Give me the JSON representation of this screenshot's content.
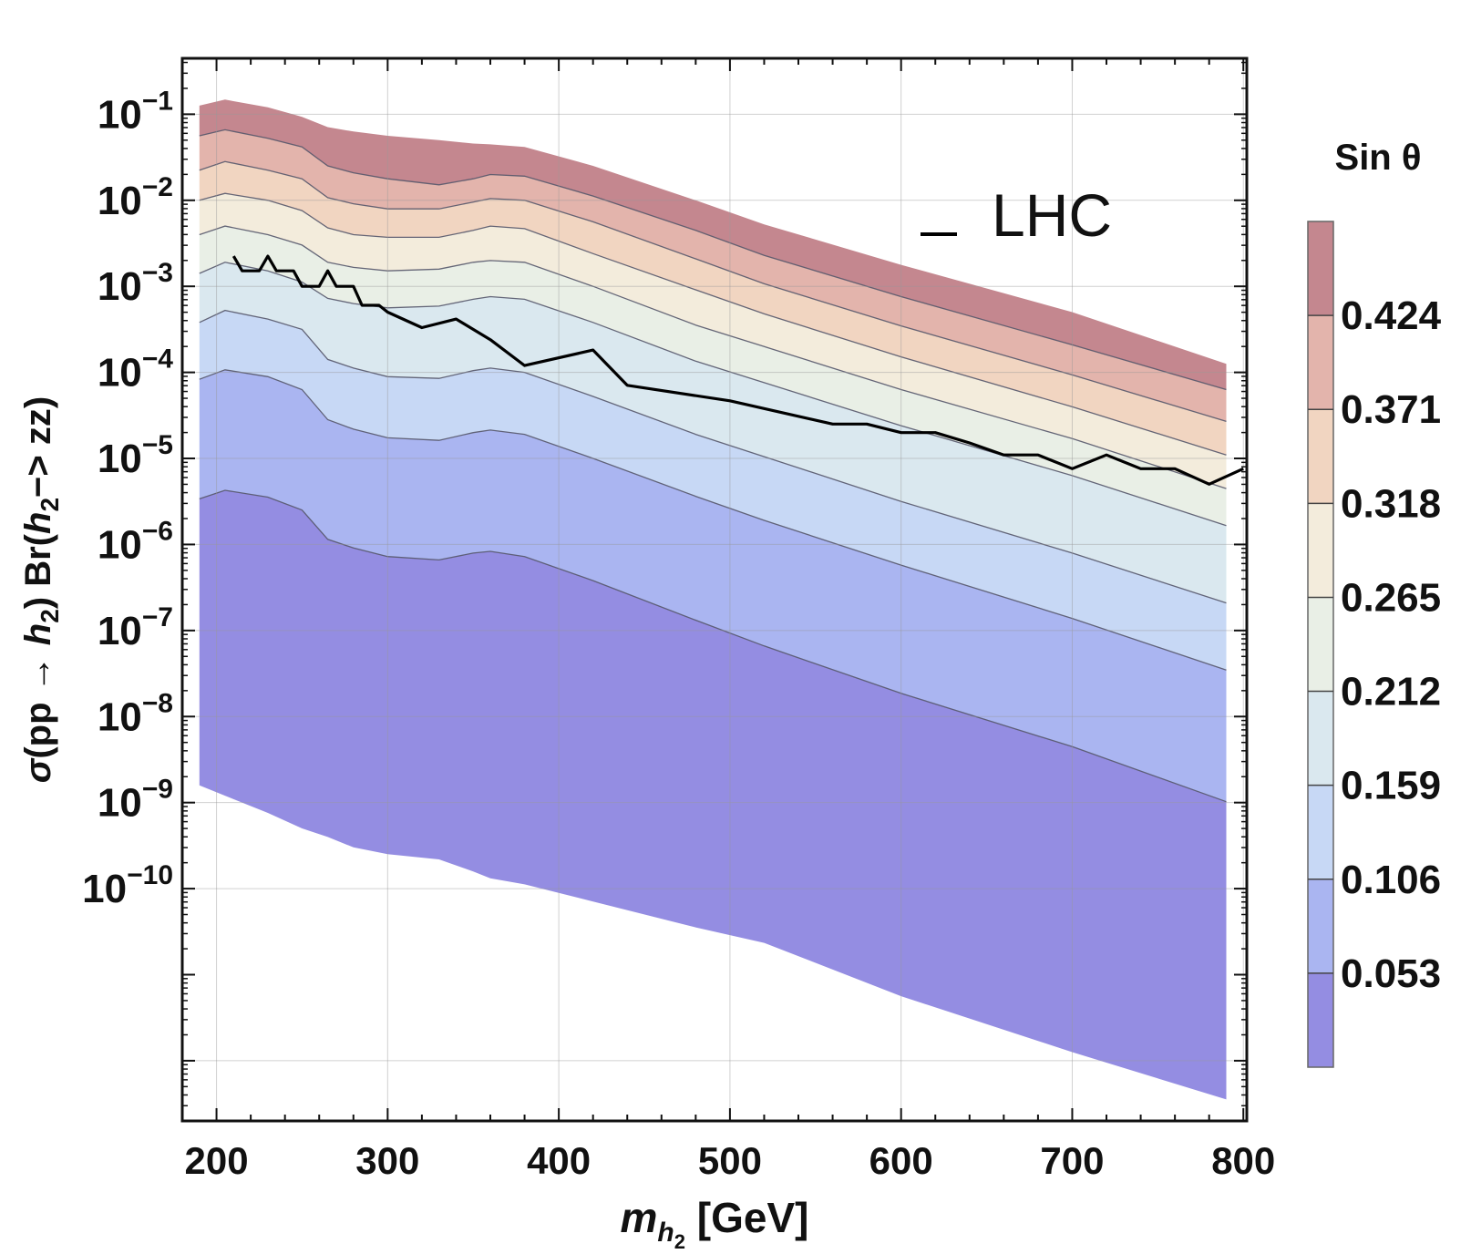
{
  "chart_data": {
    "type": "area",
    "title": "",
    "xlabel": {
      "italic_main": "m",
      "sub": "h",
      "sub2": "2",
      "rest": " [GeV]"
    },
    "ylabel": {
      "parts": [
        {
          "t": "σ",
          "i": true
        },
        {
          "t": "(pp → ",
          "i": false
        },
        {
          "t": "h",
          "i": true
        },
        {
          "t": "2",
          "sub": true
        },
        {
          "t": ") Br(",
          "i": false
        },
        {
          "t": "h",
          "i": true
        },
        {
          "t": "2",
          "sub": true
        },
        {
          "t": "−> zz)",
          "i": false
        }
      ]
    },
    "x_scale": "linear",
    "y_scale": "log10",
    "xlim": [
      180,
      802
    ],
    "ylim_log10": [
      -12.7,
      -0.35
    ],
    "x_ticks": [
      200,
      300,
      400,
      500,
      600,
      700,
      800
    ],
    "x_tick_labels": [
      "200",
      "300",
      "400",
      "500",
      "600",
      "700",
      "800"
    ],
    "y_ticks_log10": [
      -1,
      -2,
      -3,
      -4,
      -5,
      -6,
      -7,
      -8,
      -9,
      -10
    ],
    "y_tick_labels": [
      {
        "base": "10",
        "exp": "−1"
      },
      {
        "base": "10",
        "exp": "−2"
      },
      {
        "base": "10",
        "exp": "−3"
      },
      {
        "base": "10",
        "exp": "−4"
      },
      {
        "base": "10",
        "exp": "−5"
      },
      {
        "base": "10",
        "exp": "−6"
      },
      {
        "base": "10",
        "exp": "−7"
      },
      {
        "base": "10",
        "exp": "−8"
      },
      {
        "base": "10",
        "exp": "−9"
      },
      {
        "base": "10",
        "exp": "−10"
      }
    ],
    "grid": true,
    "contour_x": [
      190,
      205,
      230,
      250,
      265,
      280,
      300,
      330,
      350,
      360,
      380,
      420,
      480,
      520,
      600,
      700,
      790
    ],
    "contour_levels_log10": [
      [
        -0.9,
        -0.83,
        -0.92,
        -1.03,
        -1.15,
        -1.2,
        -1.25,
        -1.3,
        -1.34,
        -1.35,
        -1.38,
        -1.6,
        -2.0,
        -2.28,
        -2.75,
        -3.3,
        -3.9
      ],
      [
        -1.25,
        -1.18,
        -1.28,
        -1.38,
        -1.6,
        -1.68,
        -1.75,
        -1.82,
        -1.75,
        -1.7,
        -1.72,
        -1.95,
        -2.35,
        -2.64,
        -3.12,
        -3.68,
        -4.2
      ],
      [
        -1.65,
        -1.55,
        -1.65,
        -1.75,
        -1.97,
        -2.04,
        -2.1,
        -2.1,
        -2.02,
        -1.98,
        -2.0,
        -2.25,
        -2.68,
        -2.97,
        -3.46,
        -4.03,
        -4.57
      ],
      [
        -2.0,
        -1.92,
        -2.0,
        -2.12,
        -2.32,
        -2.4,
        -2.43,
        -2.43,
        -2.35,
        -2.3,
        -2.33,
        -2.62,
        -3.04,
        -3.32,
        -3.82,
        -4.4,
        -4.96
      ],
      [
        -2.4,
        -2.3,
        -2.4,
        -2.52,
        -2.72,
        -2.78,
        -2.82,
        -2.8,
        -2.72,
        -2.7,
        -2.72,
        -3.0,
        -3.45,
        -3.7,
        -4.2,
        -4.77,
        -5.35
      ],
      [
        -2.85,
        -2.72,
        -2.82,
        -2.95,
        -3.14,
        -3.2,
        -3.25,
        -3.23,
        -3.15,
        -3.12,
        -3.15,
        -3.42,
        -3.87,
        -4.12,
        -4.62,
        -5.2,
        -5.78
      ],
      [
        -3.42,
        -3.28,
        -3.38,
        -3.5,
        -3.85,
        -3.95,
        -4.05,
        -4.07,
        -3.98,
        -3.95,
        -4.0,
        -4.28,
        -4.72,
        -4.98,
        -5.5,
        -6.1,
        -6.68
      ],
      [
        -4.08,
        -3.97,
        -4.05,
        -4.2,
        -4.55,
        -4.66,
        -4.76,
        -4.79,
        -4.7,
        -4.67,
        -4.72,
        -5.0,
        -5.44,
        -5.72,
        -6.24,
        -6.86,
        -7.46
      ],
      [
        -5.47,
        -5.37,
        -5.45,
        -5.6,
        -5.94,
        -6.04,
        -6.14,
        -6.18,
        -6.1,
        -6.08,
        -6.14,
        -6.42,
        -6.88,
        -7.18,
        -7.73,
        -8.35,
        -8.99
      ],
      [
        -8.8,
        -8.92,
        -9.12,
        -9.3,
        -9.4,
        -9.52,
        -9.6,
        -9.66,
        -9.8,
        -9.88,
        -9.95,
        -10.15,
        -10.45,
        -10.63,
        -11.25,
        -11.9,
        -12.45
      ]
    ],
    "contour_values": [
      "0.477",
      "0.424",
      "0.371",
      "0.318",
      "0.265",
      "0.212",
      "0.159",
      "0.106",
      "0.053",
      "0.000"
    ],
    "band_colors": [
      "#c4878f",
      "#e3b4ac",
      "#f1d5c1",
      "#f3ecdc",
      "#e9efe6",
      "#dae8ef",
      "#c7d8f5",
      "#aab5f1",
      "#948de2"
    ],
    "series": [
      {
        "name": "LHC",
        "color": "#000000",
        "x": [
          210,
          215,
          220,
          225,
          230,
          235,
          240,
          245,
          250,
          255,
          260,
          265,
          270,
          275,
          280,
          285,
          290,
          295,
          300,
          320,
          340,
          360,
          380,
          420,
          440,
          500,
          560,
          580,
          600,
          620,
          640,
          660,
          680,
          700,
          720,
          740,
          760,
          780,
          800
        ],
        "y_log10": [
          -2.65,
          -2.82,
          -2.82,
          -2.82,
          -2.65,
          -2.82,
          -2.82,
          -2.82,
          -3.0,
          -3.0,
          -3.0,
          -2.82,
          -3.0,
          -3.0,
          -3.0,
          -3.22,
          -3.22,
          -3.22,
          -3.3,
          -3.48,
          -3.38,
          -3.62,
          -3.92,
          -3.74,
          -4.15,
          -4.33,
          -4.6,
          -4.6,
          -4.7,
          -4.7,
          -4.82,
          -4.96,
          -4.96,
          -5.12,
          -4.96,
          -5.12,
          -5.12,
          -5.3,
          -5.12
        ]
      }
    ],
    "legend": {
      "entries": [
        "LHC"
      ],
      "placement": "top-right"
    },
    "colorbar": {
      "title": "Sin θ",
      "tick_labels": [
        "0.424",
        "0.371",
        "0.318",
        "0.265",
        "0.212",
        "0.159",
        "0.106",
        "0.053"
      ],
      "band_colors_top_to_bottom": [
        "#c4878f",
        "#e3b4ac",
        "#f1d5c1",
        "#f3ecdc",
        "#e9efe6",
        "#dae8ef",
        "#c7d8f5",
        "#aab5f1",
        "#948de2"
      ]
    }
  }
}
